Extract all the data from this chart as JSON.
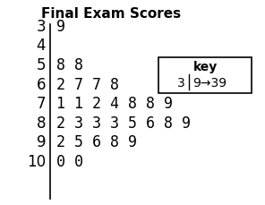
{
  "title": "Final Exam Scores",
  "stems": [
    "3",
    "4",
    "5",
    "6",
    "7",
    "8",
    "9",
    "10"
  ],
  "leaves": [
    "9",
    "",
    "8 8",
    "2 7 7 8",
    "1 1 2 4 8 8 9",
    "2 3 3 3 5 6 8 9",
    "2 5 6 8 9",
    "0 0"
  ],
  "key_stem": "3",
  "key_leaf": "9",
  "key_result": "39",
  "bg_color": "#ffffff",
  "text_color": "#000000",
  "title_fontsize": 11,
  "data_fontsize": 12,
  "key_fontsize": 10
}
